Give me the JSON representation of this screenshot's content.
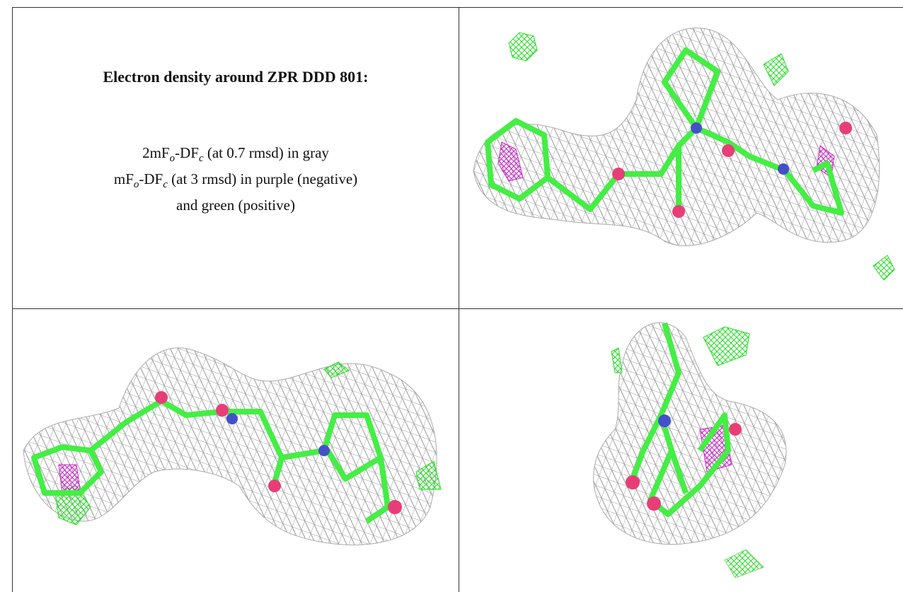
{
  "title": "Electron density around ZPR DDD 801:",
  "legend": [
    {
      "parts": [
        "2mF",
        "o",
        "-DF",
        "c",
        " (at 0.7 rmsd) in gray"
      ]
    },
    {
      "parts": [
        "mF",
        "o",
        "-DF",
        "c",
        " (at 3 rmsd) in purple (negative)"
      ]
    },
    {
      "parts": [
        "and green (positive)"
      ]
    }
  ]
}
